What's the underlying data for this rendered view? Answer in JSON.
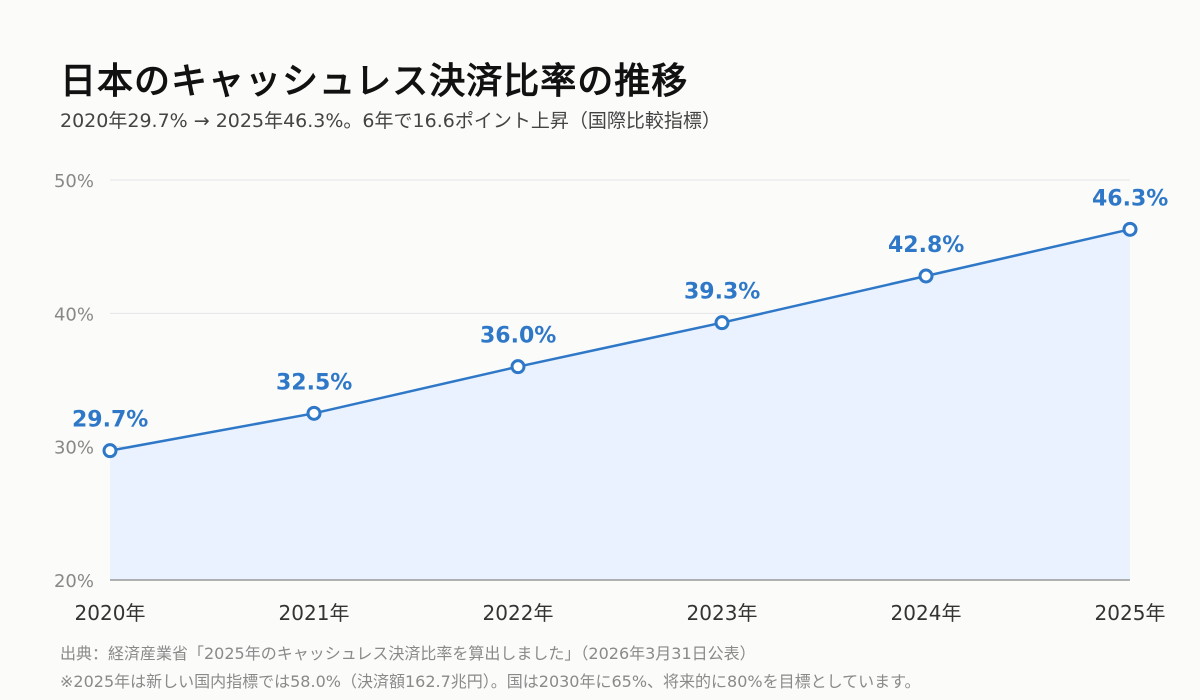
{
  "title": "日本のキャッシュレス決済比率の推移",
  "subtitle": "2020年29.7% → 2025年46.3%。6年で16.6ポイント上昇（国際比較指標）",
  "notes": {
    "source": "出典：経済産業省「2025年のキャッシュレス決済比率を算出しました」（2026年3月31日公表）",
    "footnote": "※2025年は新しい国内指標では58.0%（決済額162.7兆円）。国は2030年に65%、将来的に80%を目標としています。"
  },
  "chart_data": {
    "type": "area",
    "categories": [
      "2020年",
      "2021年",
      "2022年",
      "2023年",
      "2024年",
      "2025年"
    ],
    "values": [
      29.7,
      32.5,
      36.0,
      39.3,
      42.8,
      46.3
    ],
    "data_labels": [
      "29.7%",
      "32.5%",
      "36.0%",
      "39.3%",
      "42.8%",
      "46.3%"
    ],
    "ylim": [
      20,
      50
    ],
    "yticks": [
      20,
      30,
      40,
      50
    ],
    "ytick_labels": [
      "20%",
      "30%",
      "40%",
      "50%"
    ],
    "grid": true,
    "colors": {
      "line": "#2f78c8",
      "fill": "#e9f2fe",
      "label": "#2f78c8",
      "grid": "#e6e6e6",
      "axis": "#999999",
      "tick_text": "#888888",
      "x_text": "#333333"
    }
  }
}
